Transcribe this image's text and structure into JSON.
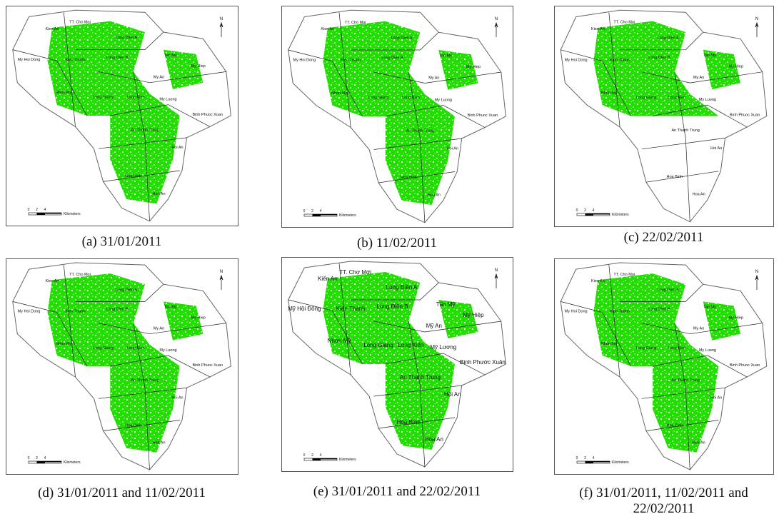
{
  "place_labels": [
    "Kien An",
    "TT. Cho Moi",
    "Long Dien A",
    "My Hoi Dong",
    "Kien Thanh",
    "Long Dien B",
    "Tan My",
    "My Hiep",
    "My An",
    "Nhon My",
    "Long Giang",
    "Long Kien",
    "My Luong",
    "Binh Phuoc Xuan",
    "An Thanh Trung",
    "Hoi An",
    "Hoa Binh",
    "Hoa An"
  ],
  "north": "N",
  "scale": {
    "ticks": [
      "0",
      "2",
      "4"
    ],
    "unit": "Kilometers"
  },
  "panels": [
    {
      "caption": "(a) 31/01/2011"
    },
    {
      "caption": "(b) 11/02/2011"
    },
    {
      "caption": "(c) 22/02/2011"
    },
    {
      "caption": "(d) 31/01/2011 and 11/02/2011"
    },
    {
      "caption": "(e) 31/01/2011 and 22/02/2011",
      "place_labels": [
        "Kiến An",
        "TT. Chợ Mới",
        "Long Điền A",
        "Mỹ Hội Đông",
        "Kiến Thành",
        "Long Điền B",
        "Tấn Mỹ",
        "Mỹ Hiệp",
        "Mỹ An",
        "Nhơn Mỹ",
        "Long Giang",
        "Long Kiến",
        "Mỹ Lương",
        "Bình Phước Xuân",
        "An Thạnh Trung",
        "Hội An",
        "Hòa Bình",
        "Hòa An"
      ]
    },
    {
      "caption": "(f) 31/01/2011, 11/02/2011 and 22/02/2011"
    }
  ]
}
